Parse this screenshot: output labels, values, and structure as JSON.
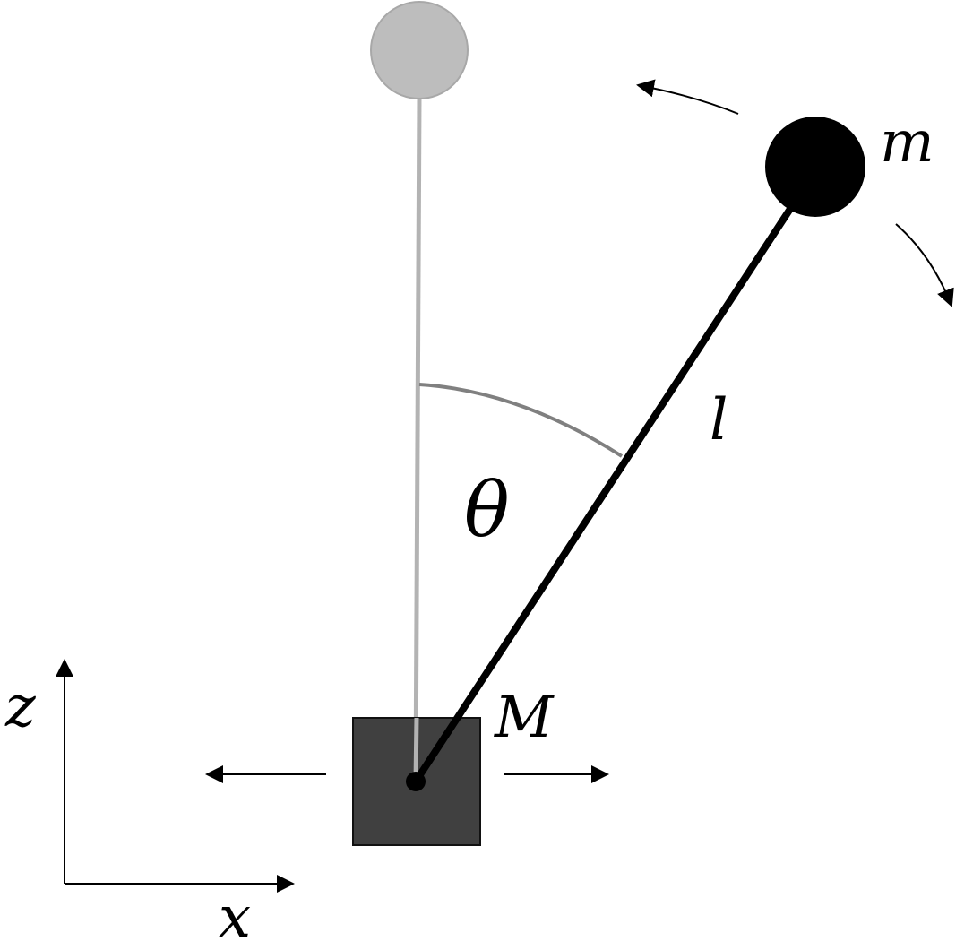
{
  "labels": {
    "bob_mass": "m",
    "rod_length": "l",
    "angle": "θ",
    "cart_mass": "M",
    "axis_x": "x",
    "axis_z": "z"
  },
  "colors": {
    "rod": "#000000",
    "bob": "#000000",
    "cart_fill": "#404040",
    "cart_stroke": "#111111",
    "ghost_rod": "#b3b3b3",
    "ghost_bob_fill": "#bdbdbd",
    "ghost_bob_stroke": "#a8a8a8",
    "angle_arc": "#808080",
    "arrows": "#000000"
  }
}
